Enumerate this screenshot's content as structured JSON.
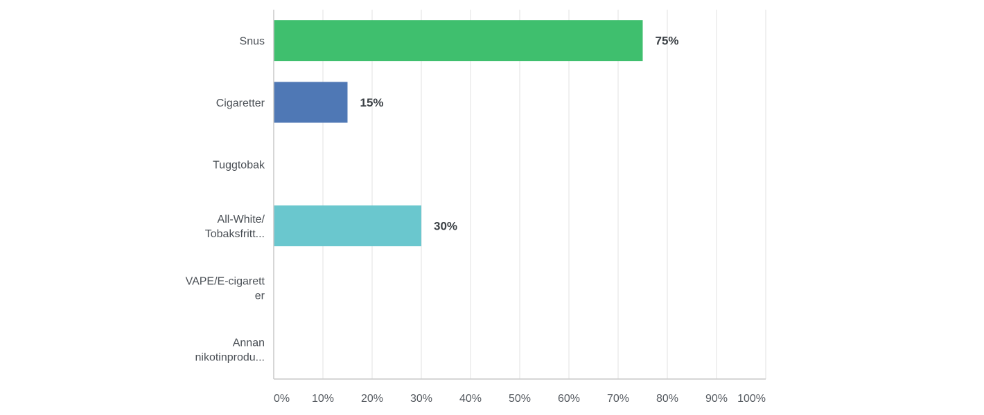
{
  "chart_data": {
    "type": "bar",
    "orientation": "horizontal",
    "categories": [
      [
        "Snus"
      ],
      [
        "Cigaretter"
      ],
      [
        "Tuggtobak"
      ],
      [
        "All-White/",
        "Tobaksfritt..."
      ],
      [
        "VAPE/E-cigarett",
        "er"
      ],
      [
        "Annan",
        "nikotinprodu..."
      ]
    ],
    "values": [
      75,
      15,
      0,
      30,
      0,
      0
    ],
    "data_labels": [
      "75%",
      "15%",
      "",
      "30%",
      "",
      ""
    ],
    "bar_colors": [
      "#3fbf6e",
      "#4f78b5",
      "#4f78b5",
      "#6ac7ce",
      "#4f78b5",
      "#4f78b5"
    ],
    "xlim": [
      0,
      100
    ],
    "x_ticks": [
      0,
      10,
      20,
      30,
      40,
      50,
      60,
      70,
      80,
      90,
      100
    ],
    "x_tick_labels": [
      "0%",
      "10%",
      "20%",
      "30%",
      "40%",
      "50%",
      "60%",
      "70%",
      "80%",
      "90%",
      "100%"
    ],
    "grid": true,
    "title": "",
    "xlabel": "",
    "ylabel": ""
  }
}
